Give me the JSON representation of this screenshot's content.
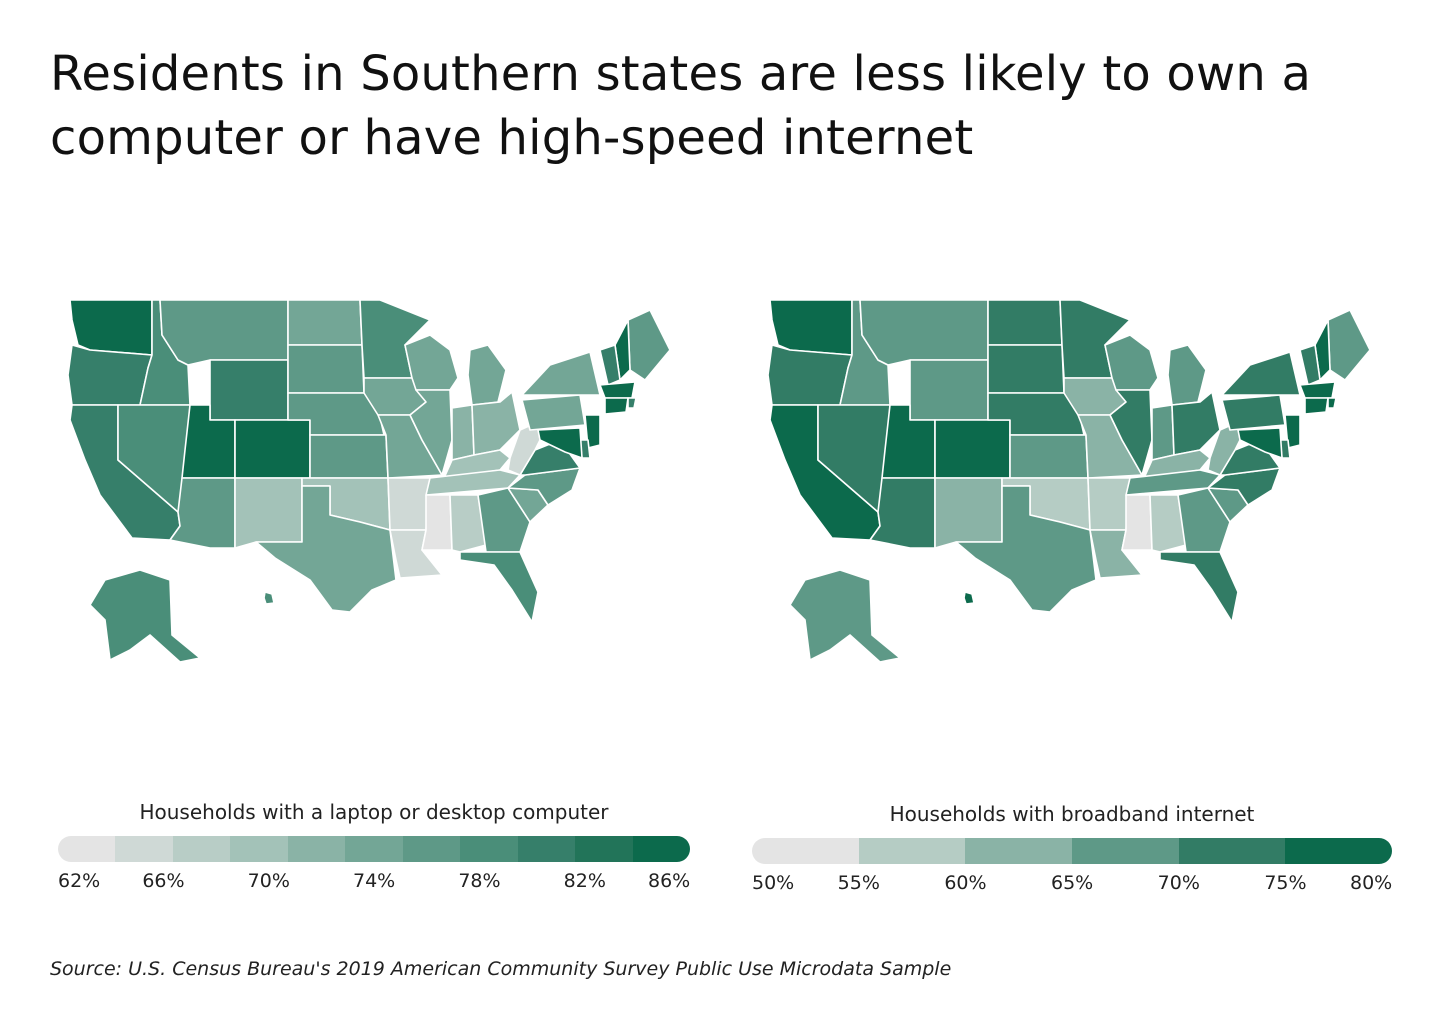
{
  "title": "Residents in Southern states are less likely to own a computer or have high-speed internet",
  "source": "Source:  U.S. Census Bureau's 2019 American Community Survey Public Use Microdata Sample",
  "maps": [
    {
      "legend_title": "Households with a laptop or desktop computer",
      "legend_ticks": [
        "62%",
        "66%",
        "70%",
        "74%",
        "78%",
        "82%",
        "86%"
      ],
      "legend_colors": [
        "#e4e4e4",
        "#cfd9d6",
        "#b8cdc6",
        "#a3c2b8",
        "#8ab3a6",
        "#73a696",
        "#5e9987",
        "#4a8e79",
        "#367f6a",
        "#227459",
        "#0c6a4c"
      ],
      "state_levels": {
        "WA": 10,
        "OR": 8,
        "CA": 8,
        "ID": 7,
        "NV": 7,
        "MT": 6,
        "WY": 8,
        "UT": 10,
        "CO": 10,
        "AZ": 6,
        "NM": 3,
        "ND": 5,
        "SD": 6,
        "NE": 6,
        "KS": 6,
        "OK": 3,
        "TX": 5,
        "MN": 7,
        "IA": 5,
        "MO": 5,
        "AR": 1,
        "LA": 1,
        "WI": 5,
        "IL": 5,
        "MI": 5,
        "IN": 4,
        "OH": 4,
        "KY": 3,
        "TN": 3,
        "MS": 0,
        "AL": 2,
        "GA": 6,
        "FL": 7,
        "SC": 5,
        "NC": 6,
        "VA": 8,
        "WV": 1,
        "PA": 5,
        "NY": 5,
        "ME": 6,
        "NH": 10,
        "VT": 8,
        "MA": 10,
        "RI": 8,
        "CT": 10,
        "NJ": 10,
        "DE": 8,
        "MD": 10,
        "AK": 7,
        "HI": 7
      }
    },
    {
      "legend_title": "Households with broadband internet",
      "legend_ticks": [
        "50%",
        "55%",
        "60%",
        "65%",
        "70%",
        "75%",
        "80%"
      ],
      "legend_colors": [
        "#e4e4e4",
        "#b5ccc4",
        "#8ab3a6",
        "#5e9987",
        "#327c65",
        "#0c6a4c"
      ],
      "state_levels": {
        "WA": 5,
        "OR": 4,
        "CA": 5,
        "ID": 3,
        "NV": 4,
        "MT": 3,
        "WY": 3,
        "UT": 5,
        "CO": 5,
        "AZ": 4,
        "NM": 2,
        "ND": 4,
        "SD": 4,
        "NE": 4,
        "KS": 3,
        "OK": 1,
        "TX": 3,
        "MN": 4,
        "IA": 2,
        "MO": 2,
        "AR": 1,
        "LA": 2,
        "WI": 3,
        "IL": 4,
        "MI": 3,
        "IN": 3,
        "OH": 4,
        "KY": 2,
        "TN": 3,
        "MS": 0,
        "AL": 1,
        "GA": 3,
        "FL": 4,
        "SC": 3,
        "NC": 4,
        "VA": 4,
        "WV": 2,
        "PA": 4,
        "NY": 4,
        "ME": 3,
        "NH": 5,
        "VT": 4,
        "MA": 5,
        "RI": 5,
        "CT": 5,
        "NJ": 5,
        "DE": 4,
        "MD": 5,
        "AK": 3,
        "HI": 5
      }
    }
  ]
}
